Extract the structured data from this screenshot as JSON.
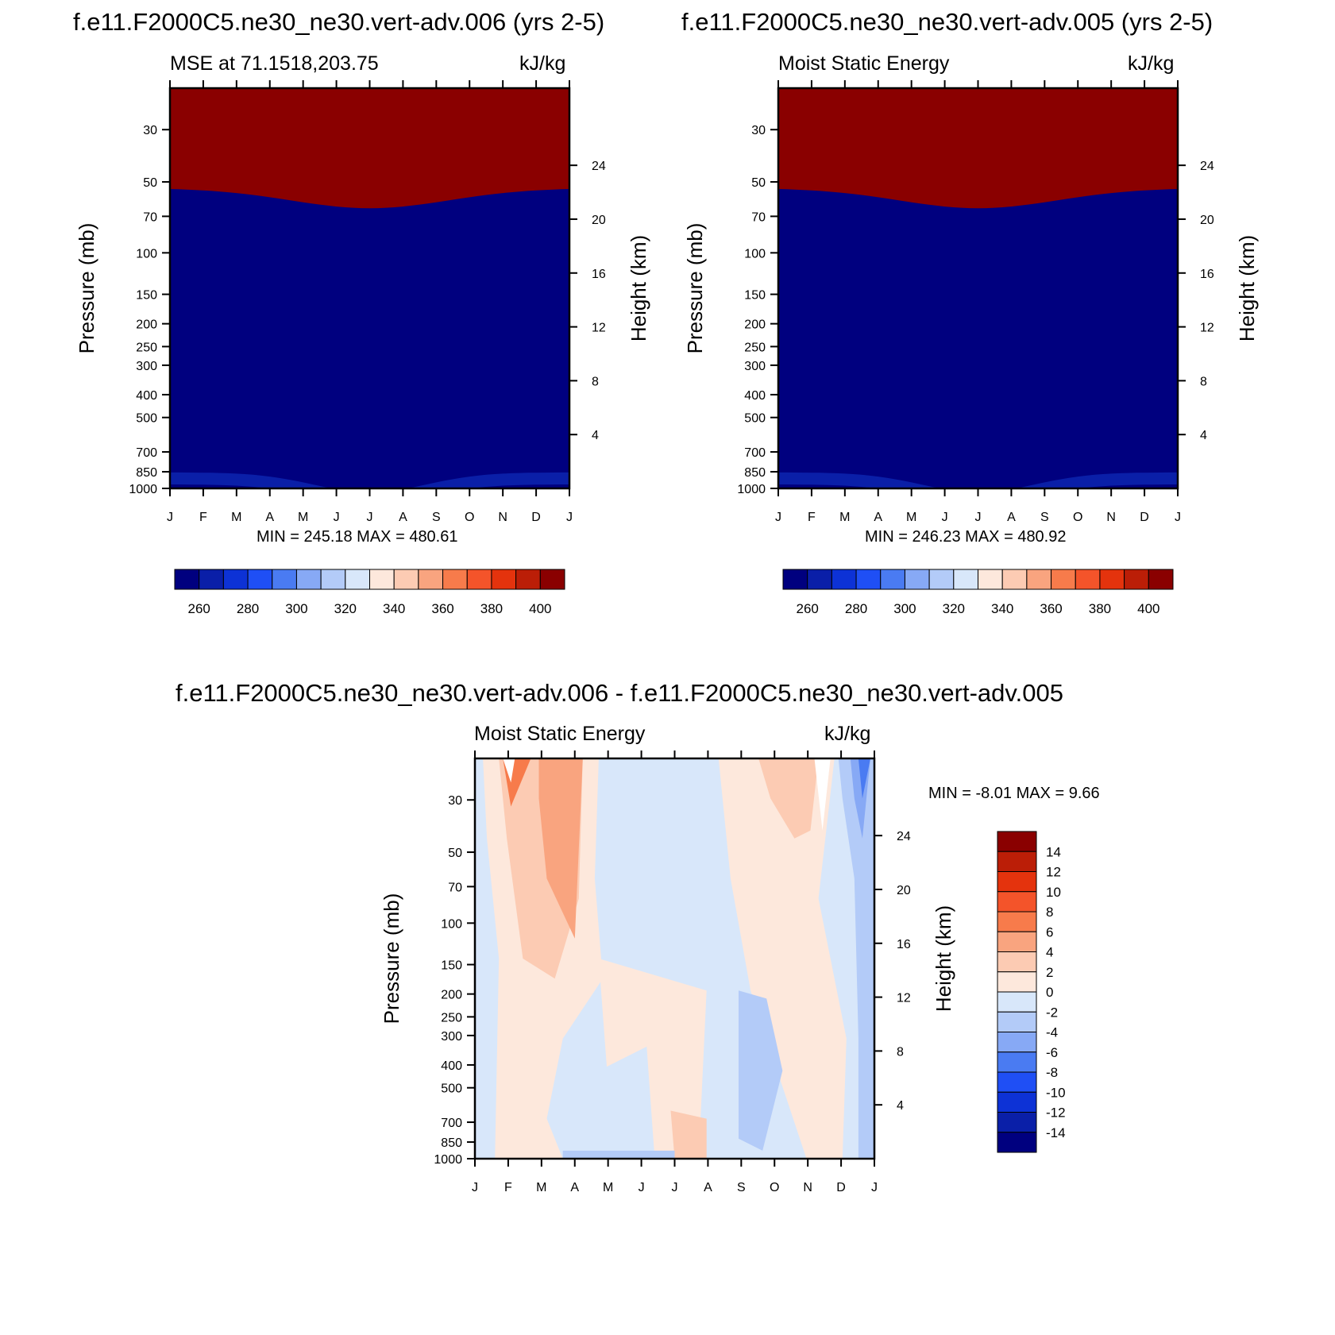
{
  "figure": {
    "title_left": "f.e11.F2000C5.ne30_ne30.vert-adv.006 (yrs 2-5)",
    "title_right": "f.e11.F2000C5.ne30_ne30.vert-adv.005 (yrs 2-5)",
    "title_bottom": "f.e11.F2000C5.ne30_ne30.vert-adv.006 - f.e11.F2000C5.ne30_ne30.vert-adv.005"
  },
  "chart_data": [
    {
      "type": "heatmap",
      "subtitle_left": "MSE at 71.1518,203.75",
      "units": "kJ/kg",
      "ylabel": "Pressure (mb)",
      "ylabel_right": "Height (km)",
      "x_ticks": [
        "J",
        "F",
        "M",
        "A",
        "M",
        "J",
        "J",
        "A",
        "S",
        "O",
        "N",
        "D",
        "J"
      ],
      "y_ticks": [
        30,
        50,
        70,
        100,
        150,
        200,
        250,
        300,
        400,
        500,
        700,
        850,
        1000
      ],
      "y_scale": "log",
      "y_right_ticks": [
        24,
        20,
        16,
        12,
        8,
        4
      ],
      "stats": "MIN = 245.18 MAX = 480.61",
      "colorbar_labels": [
        260,
        280,
        300,
        320,
        340,
        360,
        380,
        400
      ]
    },
    {
      "type": "heatmap",
      "subtitle_left": "Moist Static Energy",
      "units": "kJ/kg",
      "ylabel": "Pressure (mb)",
      "ylabel_right": "Height (km)",
      "x_ticks": [
        "J",
        "F",
        "M",
        "A",
        "M",
        "J",
        "J",
        "A",
        "S",
        "O",
        "N",
        "D",
        "J"
      ],
      "y_ticks": [
        30,
        50,
        70,
        100,
        150,
        200,
        250,
        300,
        400,
        500,
        700,
        850,
        1000
      ],
      "y_scale": "log",
      "y_right_ticks": [
        24,
        20,
        16,
        12,
        8,
        4
      ],
      "stats": "MIN = 246.23 MAX = 480.92",
      "colorbar_labels": [
        260,
        280,
        300,
        320,
        340,
        360,
        380,
        400
      ]
    },
    {
      "type": "heatmap",
      "subtitle_left": "Moist Static Energy",
      "units": "kJ/kg",
      "ylabel": "Pressure (mb)",
      "ylabel_right": "Height (km)",
      "x_ticks": [
        "J",
        "F",
        "M",
        "A",
        "M",
        "J",
        "J",
        "A",
        "S",
        "O",
        "N",
        "D",
        "J"
      ],
      "y_ticks": [
        30,
        50,
        70,
        100,
        150,
        200,
        250,
        300,
        400,
        500,
        700,
        850,
        1000
      ],
      "y_scale": "log",
      "y_right_ticks": [
        24,
        20,
        16,
        12,
        8,
        4
      ],
      "stats": "MIN =  -8.01 MAX =   9.66",
      "colorbar_labels": [
        14,
        12,
        10,
        8,
        6,
        4,
        2,
        0,
        -2,
        -4,
        -6,
        -8,
        -10,
        -12,
        -14
      ]
    }
  ],
  "palettes": {
    "abs": [
      "#00007f",
      "#0a1fa8",
      "#0d32d6",
      "#1f4ff5",
      "#4a7bf2",
      "#87a9f5",
      "#b3cbf8",
      "#d8e7fa",
      "#fde8dc",
      "#fccbb3",
      "#f9a47f",
      "#f77b4b",
      "#f4542a",
      "#e4330d",
      "#bb1e07",
      "#8a0000"
    ],
    "diff": [
      "#8a0000",
      "#bb1e07",
      "#e4330d",
      "#f4542a",
      "#f77b4b",
      "#f9a47f",
      "#fccbb3",
      "#fde8dc",
      "#d8e7fa",
      "#b3cbf8",
      "#87a9f5",
      "#4a7bf2",
      "#1f4ff5",
      "#0d32d6",
      "#0a1fa8",
      "#00007f"
    ]
  }
}
